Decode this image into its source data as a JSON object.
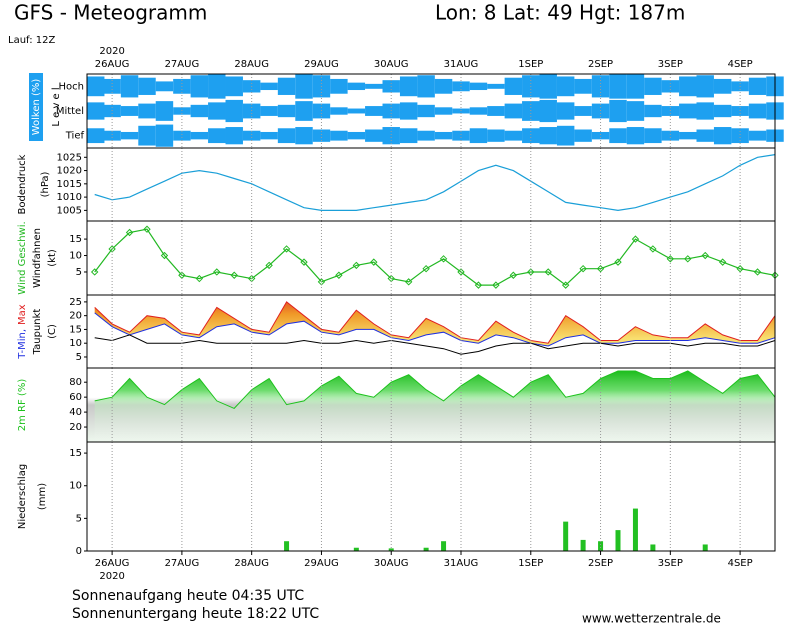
{
  "header": {
    "title": "GFS - Meteogramm",
    "location": "Lon: 8 Lat: 49 Hgt: 187m",
    "run": "Lauf: 12Z"
  },
  "time_axis": {
    "year": "2020",
    "xlim": [
      -0.36,
      9.5
    ],
    "xticks": [
      {
        "value": 0,
        "label": "26AUG"
      },
      {
        "value": 1,
        "label": "27AUG"
      },
      {
        "value": 2,
        "label": "28AUG"
      },
      {
        "value": 3,
        "label": "29AUG"
      },
      {
        "value": 4,
        "label": "30AUG"
      },
      {
        "value": 5,
        "label": "31AUG"
      },
      {
        "value": 6,
        "label": "1SEP"
      },
      {
        "value": 7,
        "label": "2SEP"
      },
      {
        "value": 8,
        "label": "3SEP"
      },
      {
        "value": 9,
        "label": "4SEP"
      }
    ],
    "x": [
      -0.25,
      0,
      0.25,
      0.5,
      0.75,
      1,
      1.25,
      1.5,
      1.75,
      2,
      2.25,
      2.5,
      2.75,
      3,
      3.25,
      3.5,
      3.75,
      4,
      4.25,
      4.5,
      4.75,
      5,
      5.25,
      5.5,
      5.75,
      6,
      6.25,
      6.5,
      6.75,
      7,
      7.25,
      7.5,
      7.75,
      8,
      8.25,
      8.5,
      8.75,
      9,
      9.25,
      9.5
    ]
  },
  "chart_data": [
    {
      "type": "bands",
      "y_label": [
        "Wolken (%)",
        "L e v e l"
      ],
      "ylim": [
        0,
        100
      ],
      "color": "#1ea0f0",
      "series": [
        {
          "name": "Hoch",
          "values": [
            80,
            60,
            90,
            70,
            40,
            60,
            90,
            100,
            80,
            50,
            30,
            70,
            100,
            90,
            60,
            30,
            20,
            50,
            80,
            90,
            60,
            40,
            30,
            20,
            70,
            90,
            100,
            80,
            60,
            90,
            100,
            100,
            70,
            50,
            80,
            90,
            60,
            40,
            70,
            80
          ]
        },
        {
          "name": "Mittel",
          "values": [
            70,
            50,
            40,
            60,
            80,
            30,
            50,
            70,
            90,
            60,
            40,
            50,
            80,
            60,
            30,
            20,
            40,
            60,
            70,
            50,
            30,
            20,
            30,
            40,
            60,
            80,
            90,
            70,
            40,
            60,
            90,
            80,
            50,
            40,
            60,
            70,
            50,
            40,
            60,
            70
          ]
        },
        {
          "name": "Tief",
          "values": [
            60,
            40,
            30,
            80,
            90,
            40,
            30,
            60,
            70,
            40,
            30,
            60,
            70,
            50,
            40,
            30,
            50,
            70,
            60,
            40,
            30,
            40,
            60,
            50,
            40,
            60,
            70,
            80,
            50,
            30,
            60,
            70,
            60,
            40,
            30,
            50,
            70,
            60,
            40,
            50
          ]
        }
      ]
    },
    {
      "type": "line",
      "y_label": [
        "Bodendruck",
        "(hPa)"
      ],
      "ylim": [
        1001,
        1028.5
      ],
      "yticks": [
        1005,
        1010,
        1015,
        1020,
        1025
      ],
      "color": "#1a9fd8",
      "values": [
        1011,
        1009,
        1010,
        1013,
        1016,
        1019,
        1020,
        1019,
        1017,
        1015,
        1012,
        1009,
        1006,
        1005,
        1005,
        1005,
        1006,
        1007,
        1008,
        1009,
        1012,
        1016,
        1020,
        1022,
        1020,
        1016,
        1012,
        1008,
        1007,
        1006,
        1005,
        1006,
        1008,
        1010,
        1012,
        1015,
        1018,
        1022,
        1025,
        1026
      ]
    },
    {
      "type": "line",
      "y_label": [
        "Windfahnen",
        "(kt)"
      ],
      "ylim": [
        -2,
        20.5
      ],
      "yticks": [
        5,
        10,
        15
      ],
      "markers": true,
      "series": [
        {
          "name": "Wind Geschwi.",
          "color": "#22b822",
          "values": [
            5,
            12,
            17,
            18,
            10,
            4,
            3,
            5,
            4,
            3,
            7,
            12,
            8,
            2,
            4,
            7,
            8,
            3,
            2,
            6,
            9,
            5,
            1,
            1,
            4,
            5,
            5,
            1,
            6,
            6,
            8,
            15,
            12,
            9,
            9,
            10,
            8,
            6,
            5,
            4
          ]
        }
      ]
    },
    {
      "type": "range",
      "y_label": [
        "(C)"
      ],
      "ylim": [
        1,
        27.5
      ],
      "yticks": [
        5,
        10,
        15,
        20,
        25
      ],
      "series": [
        {
          "name": "T-Min,",
          "color": "#2030e0",
          "values": [
            21,
            16,
            13,
            15,
            17,
            13,
            12,
            16,
            17,
            14,
            13,
            17,
            18,
            14,
            13,
            15,
            15,
            12,
            11,
            13,
            14,
            11,
            10,
            13,
            12,
            10,
            9,
            12,
            13,
            10,
            10,
            11,
            11,
            11,
            11,
            12,
            11,
            10,
            10,
            12
          ]
        },
        {
          "name": "Max",
          "color": "#e02020",
          "values": [
            23,
            17,
            14,
            20,
            19,
            14,
            13,
            23,
            19,
            15,
            14,
            25,
            20,
            15,
            14,
            22,
            17,
            13,
            12,
            19,
            16,
            12,
            11,
            18,
            14,
            11,
            10,
            20,
            16,
            11,
            11,
            16,
            13,
            12,
            12,
            17,
            13,
            11,
            11,
            20
          ]
        },
        {
          "name": "Taupunkt",
          "color": "#000000",
          "values": [
            12,
            11,
            13,
            10,
            10,
            10,
            11,
            10,
            10,
            10,
            10,
            10,
            11,
            10,
            10,
            11,
            10,
            11,
            10,
            9,
            8,
            6,
            7,
            9,
            10,
            10,
            8,
            9,
            10,
            10,
            9,
            10,
            10,
            10,
            9,
            10,
            10,
            9,
            9,
            11
          ]
        }
      ]
    },
    {
      "type": "area",
      "ylim": [
        0,
        99
      ],
      "yticks": [
        20,
        40,
        60,
        80
      ],
      "series": [
        {
          "name": "2m RF (%)",
          "color": "#1dc21d",
          "values": [
            55,
            60,
            85,
            60,
            50,
            70,
            85,
            55,
            45,
            70,
            85,
            50,
            55,
            75,
            88,
            65,
            60,
            80,
            90,
            70,
            55,
            75,
            90,
            75,
            60,
            80,
            90,
            60,
            65,
            85,
            95,
            95,
            85,
            85,
            95,
            80,
            65,
            85,
            90,
            60
          ]
        }
      ]
    },
    {
      "type": "bar",
      "y_label": [
        "Niederschlag",
        "(mm)"
      ],
      "ylim": [
        0,
        16.7
      ],
      "yticks": [
        0,
        5,
        10,
        15
      ],
      "color": "#22c022",
      "values": [
        0,
        0,
        0,
        0,
        0,
        0,
        0,
        0,
        0,
        0,
        0,
        1.5,
        0,
        0,
        0,
        0.5,
        0,
        0.4,
        0,
        0.5,
        1.5,
        0,
        0,
        0,
        0,
        0,
        0,
        4.5,
        1.7,
        1.5,
        3.2,
        6.5,
        1,
        0,
        0,
        1,
        0,
        0,
        0,
        0
      ]
    }
  ],
  "footer": {
    "sunrise": "Sonnenaufgang heute 04:35 UTC",
    "sunset": "Sonnenuntergang heute 18:22 UTC",
    "url": "www.wetterzentrale.de"
  }
}
